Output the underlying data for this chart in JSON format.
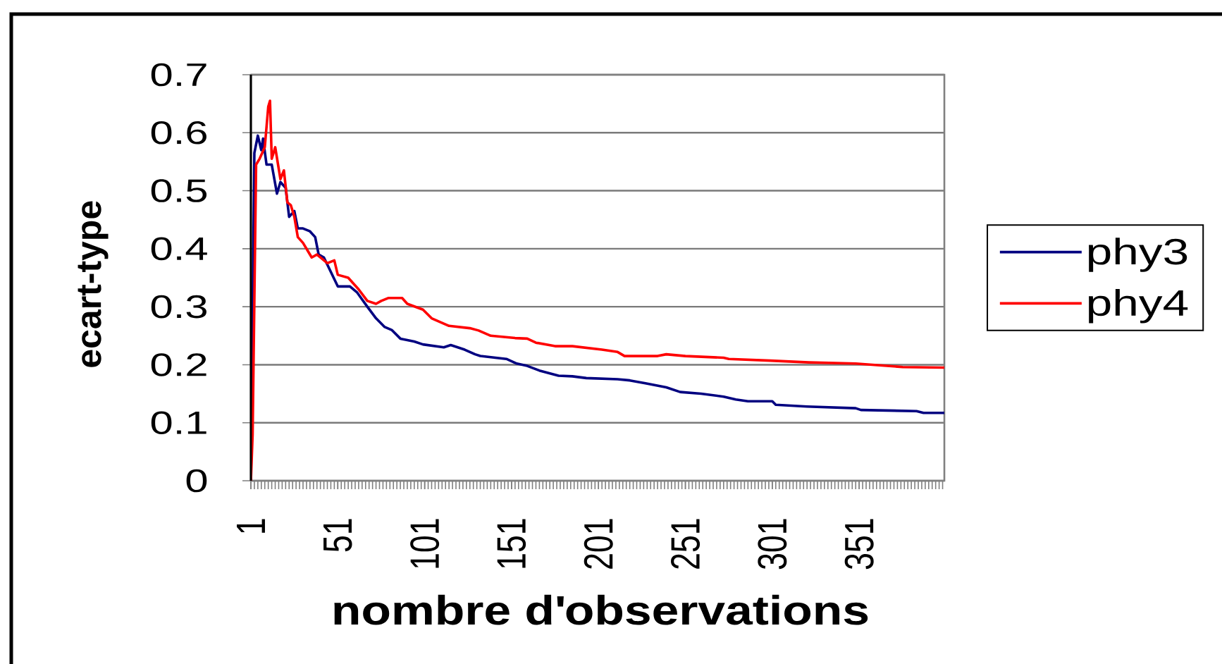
{
  "chart_data": {
    "type": "line",
    "xlabel": "nombre d'observations",
    "ylabel": "ecart-type",
    "xlim": [
      1,
      400
    ],
    "xticks": [
      1,
      51,
      101,
      151,
      201,
      251,
      301,
      351
    ],
    "ylim": [
      0,
      0.7
    ],
    "yticks": [
      0,
      0.1,
      0.2,
      0.3,
      0.4,
      0.5,
      0.6,
      0.7
    ],
    "grid": "y",
    "legend": "right",
    "series": [
      {
        "name": "phy3",
        "color": "#000080",
        "x": [
          1,
          3,
          5,
          7,
          8,
          10,
          13,
          16,
          18,
          21,
          23,
          26,
          28,
          31,
          35,
          38,
          40,
          43,
          47,
          51,
          58,
          62,
          68,
          73,
          78,
          82,
          87,
          95,
          100,
          112,
          116,
          124,
          130,
          133,
          148,
          154,
          160,
          167,
          178,
          186,
          194,
          212,
          219,
          228,
          240,
          248,
          260,
          273,
          280,
          287,
          301,
          303,
          321,
          349,
          352,
          384,
          388,
          400
        ],
        "values": [
          0,
          0.565,
          0.595,
          0.57,
          0.59,
          0.545,
          0.545,
          0.495,
          0.515,
          0.505,
          0.455,
          0.465,
          0.435,
          0.435,
          0.43,
          0.42,
          0.39,
          0.385,
          0.36,
          0.335,
          0.335,
          0.325,
          0.3,
          0.28,
          0.265,
          0.26,
          0.245,
          0.24,
          0.235,
          0.23,
          0.234,
          0.226,
          0.218,
          0.215,
          0.21,
          0.202,
          0.198,
          0.19,
          0.181,
          0.18,
          0.177,
          0.175,
          0.173,
          0.168,
          0.161,
          0.153,
          0.15,
          0.145,
          0.14,
          0.137,
          0.137,
          0.131,
          0.128,
          0.125,
          0.122,
          0.12,
          0.117,
          0.117
        ]
      },
      {
        "name": "phy4",
        "color": "#ff0000",
        "x": [
          1,
          2,
          4,
          6,
          9,
          11,
          12,
          13,
          15,
          18,
          20,
          22,
          24,
          26,
          28,
          31,
          34,
          36,
          39,
          45,
          49,
          51,
          57,
          63,
          68,
          73,
          76,
          80,
          88,
          91,
          100,
          105,
          115,
          127,
          132,
          139,
          153,
          160,
          165,
          176,
          186,
          203,
          212,
          216,
          235,
          240,
          251,
          273,
          276,
          300,
          322,
          349,
          376,
          400
        ],
        "values": [
          0,
          0.08,
          0.545,
          0.555,
          0.575,
          0.645,
          0.655,
          0.555,
          0.575,
          0.52,
          0.535,
          0.48,
          0.475,
          0.455,
          0.42,
          0.41,
          0.395,
          0.385,
          0.39,
          0.375,
          0.38,
          0.355,
          0.35,
          0.33,
          0.31,
          0.305,
          0.31,
          0.315,
          0.315,
          0.305,
          0.295,
          0.28,
          0.267,
          0.263,
          0.259,
          0.25,
          0.246,
          0.245,
          0.238,
          0.232,
          0.232,
          0.226,
          0.222,
          0.215,
          0.215,
          0.218,
          0.215,
          0.212,
          0.21,
          0.207,
          0.204,
          0.202,
          0.196,
          0.195
        ]
      }
    ]
  }
}
